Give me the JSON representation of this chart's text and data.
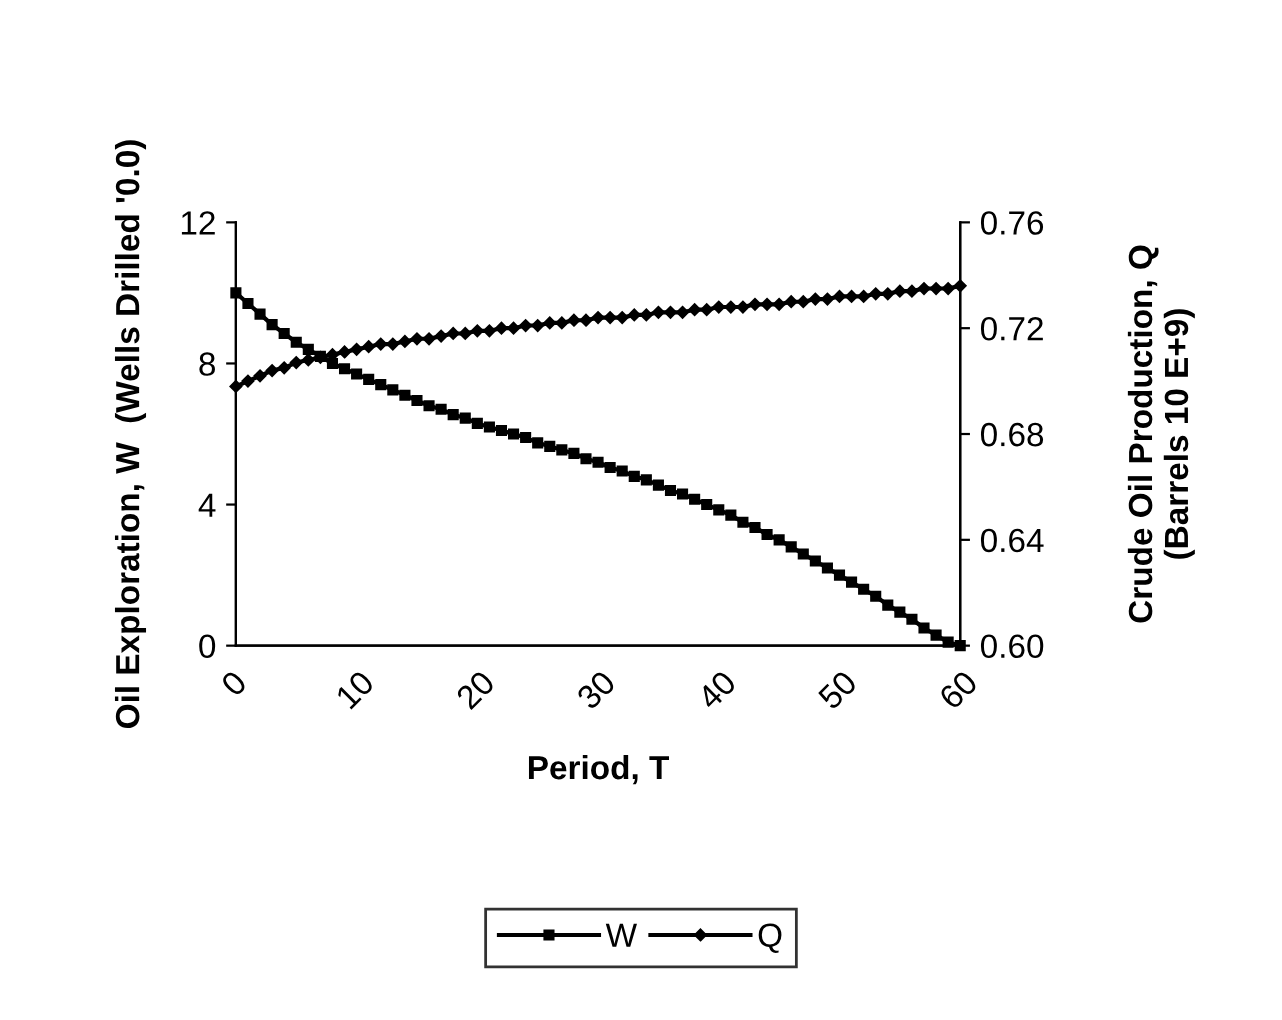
{
  "chart_data": {
    "type": "line",
    "xlabel": "Period, T",
    "ylabel": "Oil Exploration, W  (Wells Drilled '0.0)",
    "y2label": "Crude Oil Production, Q\n(Barrels 10 E+9)",
    "x": [
      0,
      1,
      2,
      3,
      4,
      5,
      6,
      7,
      8,
      9,
      10,
      11,
      12,
      13,
      14,
      15,
      16,
      17,
      18,
      19,
      20,
      21,
      22,
      23,
      24,
      25,
      26,
      27,
      28,
      29,
      30,
      31,
      32,
      33,
      34,
      35,
      36,
      37,
      38,
      39,
      40,
      41,
      42,
      43,
      44,
      45,
      46,
      47,
      48,
      49,
      50,
      51,
      52,
      53,
      54,
      55,
      56,
      57,
      58,
      59,
      60
    ],
    "series": [
      {
        "name": "W",
        "color": "#000000",
        "marker": "square",
        "values": [
          10.0,
          9.7,
          9.4,
          9.1,
          8.85,
          8.6,
          8.4,
          8.2,
          8.0,
          7.85,
          7.7,
          7.55,
          7.4,
          7.25,
          7.1,
          6.95,
          6.8,
          6.7,
          6.55,
          6.45,
          6.3,
          6.2,
          6.1,
          6.0,
          5.9,
          5.75,
          5.65,
          5.55,
          5.45,
          5.3,
          5.2,
          5.05,
          4.95,
          4.8,
          4.7,
          4.55,
          4.4,
          4.3,
          4.15,
          4.0,
          3.85,
          3.7,
          3.5,
          3.35,
          3.15,
          3.0,
          2.8,
          2.6,
          2.4,
          2.2,
          2.0,
          1.8,
          1.6,
          1.4,
          1.15,
          0.95,
          0.75,
          0.5,
          0.3,
          0.1,
          0.0
        ]
      },
      {
        "name": "Q",
        "color": "#000000",
        "marker": "diamond",
        "axis": "y2",
        "values": [
          0.698,
          0.7,
          0.702,
          0.704,
          0.705,
          0.707,
          0.708,
          0.709,
          0.71,
          0.711,
          0.712,
          0.713,
          0.714,
          0.714,
          0.715,
          0.716,
          0.716,
          0.717,
          0.718,
          0.718,
          0.719,
          0.719,
          0.72,
          0.72,
          0.721,
          0.721,
          0.722,
          0.722,
          0.723,
          0.723,
          0.724,
          0.724,
          0.724,
          0.725,
          0.725,
          0.726,
          0.726,
          0.726,
          0.727,
          0.727,
          0.728,
          0.728,
          0.728,
          0.729,
          0.729,
          0.729,
          0.73,
          0.73,
          0.731,
          0.731,
          0.732,
          0.732,
          0.732,
          0.733,
          0.733,
          0.734,
          0.734,
          0.735,
          0.735,
          0.735,
          0.736
        ]
      }
    ],
    "xlim": [
      0,
      60
    ],
    "xticks": [
      0,
      10,
      20,
      30,
      40,
      50,
      60
    ],
    "ylim": [
      0,
      12
    ],
    "yticks": [
      0,
      4,
      8,
      12
    ],
    "y2lim": [
      0.6,
      0.76
    ],
    "y2ticks": [
      {
        "value": 0.6,
        "label": "0.60"
      },
      0.64,
      0.68,
      0.72,
      0.76
    ],
    "grid": false,
    "legend": "bottom",
    "line_style": "solid"
  }
}
